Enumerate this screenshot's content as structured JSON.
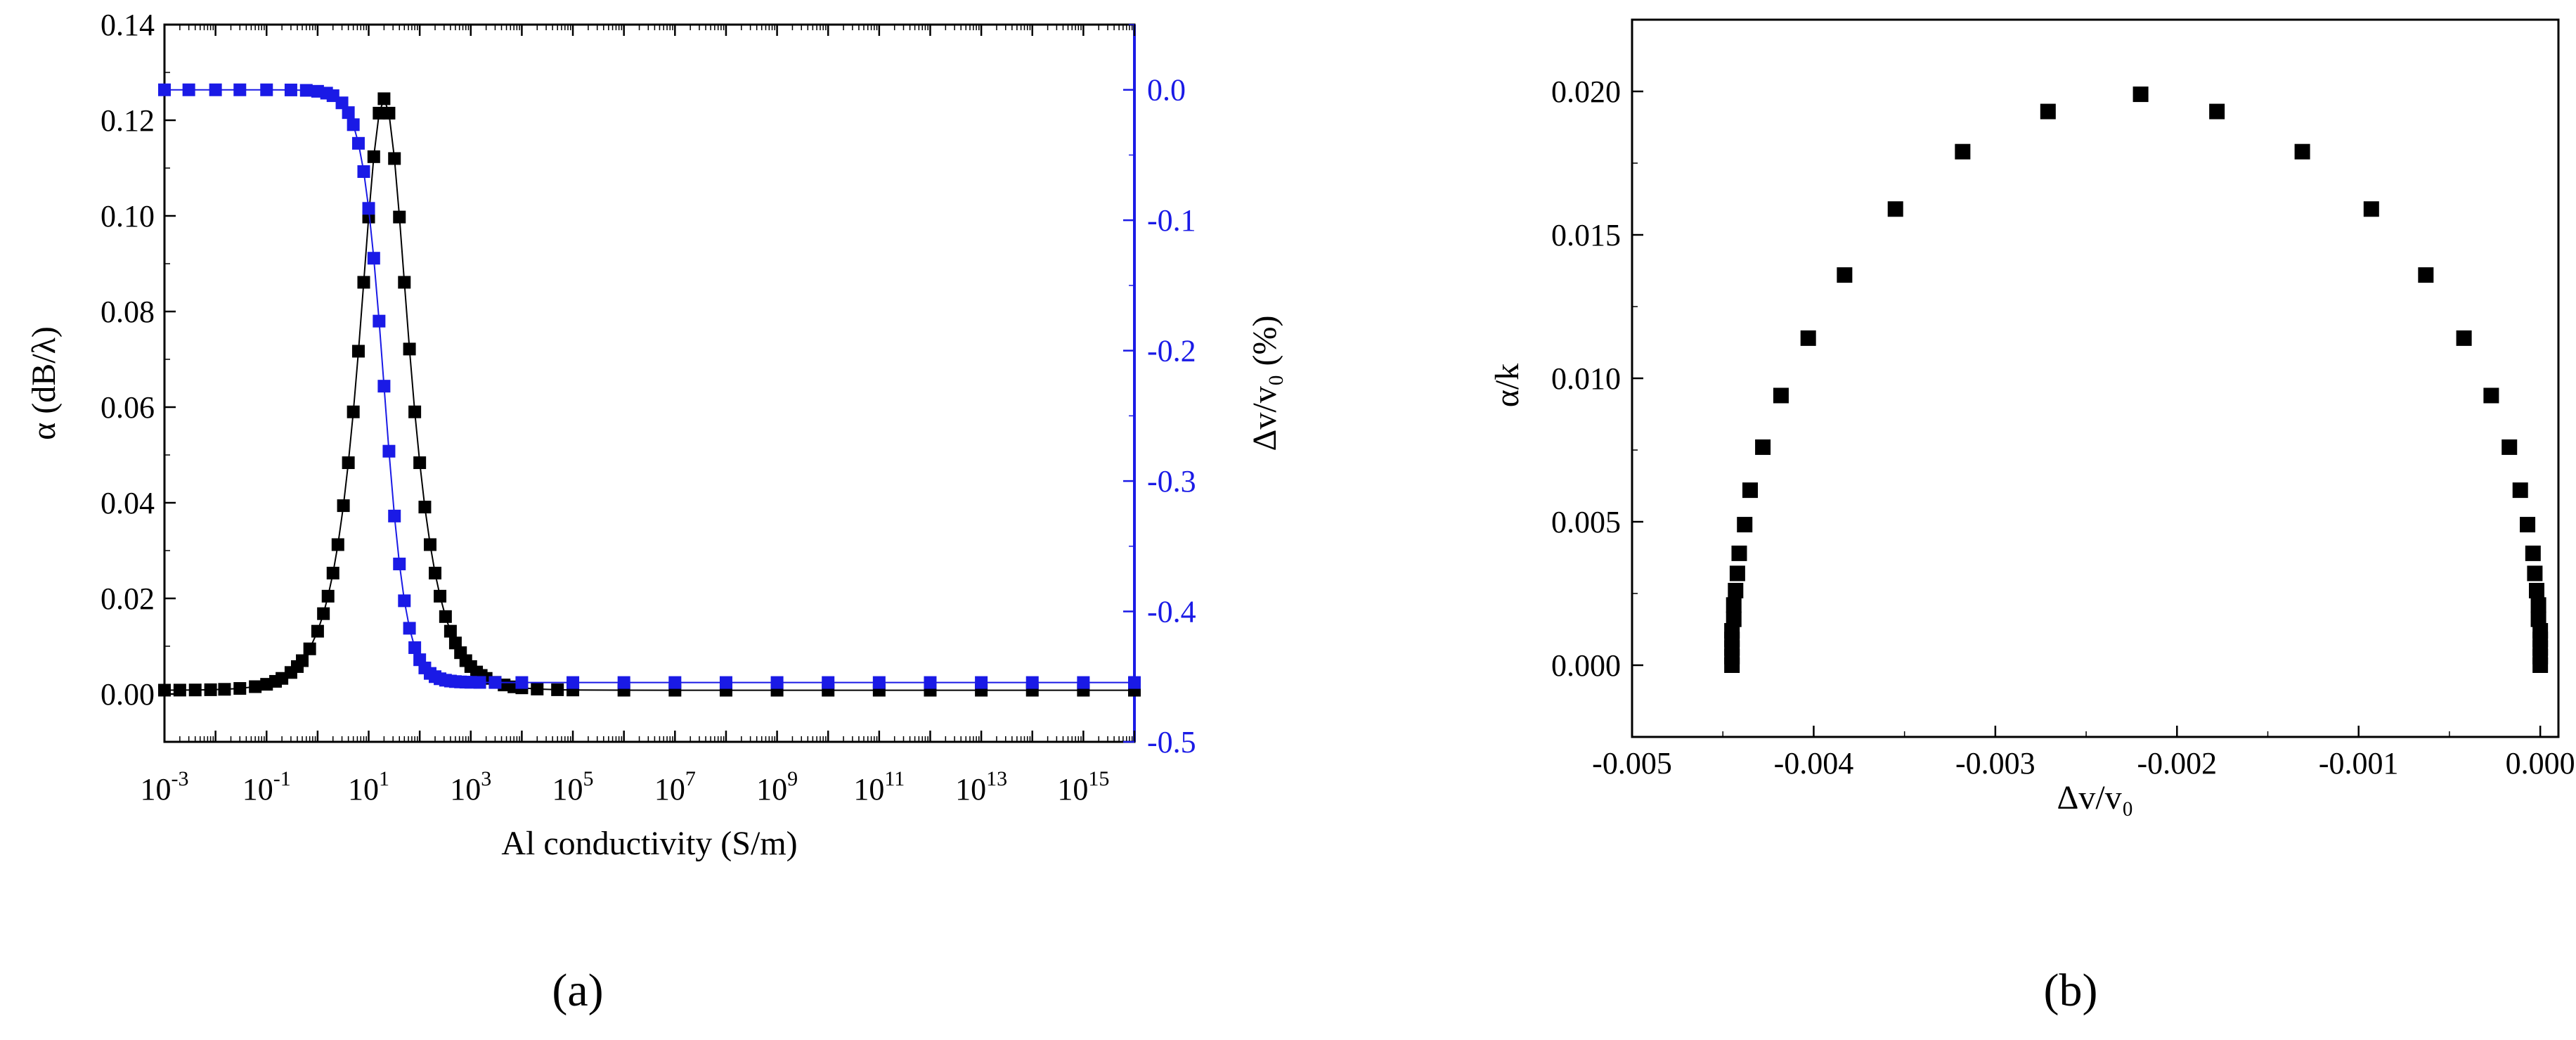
{
  "panel_labels": {
    "a": "(a)",
    "b": "(b)"
  },
  "chart_data": [
    {
      "id": "a",
      "type": "scatter",
      "x_scale": "log",
      "xlabel": "Al conductivity (S/m)",
      "ylabel_left": "α (dB/λ)",
      "ylabel_right": "Δv/v₀ (%)",
      "xlim": [
        0.001,
        1e+16
      ],
      "ylim_left": [
        -0.01,
        0.14
      ],
      "ylim_right": [
        -0.5,
        0.05
      ],
      "x_ticks": [
        {
          "value": 0.001,
          "base": "10",
          "exp": "-3"
        },
        {
          "value": 0.1,
          "base": "10",
          "exp": "-1"
        },
        {
          "value": 10,
          "base": "10",
          "exp": "1"
        },
        {
          "value": 1000,
          "base": "10",
          "exp": "3"
        },
        {
          "value": 100000,
          "base": "10",
          "exp": "5"
        },
        {
          "value": 10000000,
          "base": "10",
          "exp": "7"
        },
        {
          "value": 1000000000,
          "base": "10",
          "exp": "9"
        },
        {
          "value": 100000000000,
          "base": "10",
          "exp": "11"
        },
        {
          "value": 10000000000000,
          "base": "10",
          "exp": "13"
        },
        {
          "value": 1000000000000000,
          "base": "10",
          "exp": "15"
        }
      ],
      "y_ticks_left": [
        0.0,
        0.02,
        0.04,
        0.06,
        0.08,
        0.1,
        0.12,
        0.14
      ],
      "y_tick_labels_left": [
        "0.00",
        "0.02",
        "0.04",
        "0.06",
        "0.08",
        "0.10",
        "0.12",
        "0.14"
      ],
      "y_ticks_right": [
        0.0,
        -0.1,
        -0.2,
        -0.3,
        -0.4,
        -0.5
      ],
      "y_tick_labels_right": [
        "0.0",
        "-0.1",
        "-0.2",
        "-0.3",
        "-0.4",
        "-0.5"
      ],
      "series": [
        {
          "axis": "left",
          "color": "#000000",
          "model": "debye_peak",
          "peak": 0.1245,
          "center": 20,
          "baseline": 0.0008,
          "x_points": [
            0.001,
            0.002,
            0.004,
            0.008,
            0.015,
            0.03,
            0.06,
            0.1,
            0.15,
            0.2,
            0.3,
            0.4,
            0.5,
            0.7,
            1,
            1.3,
            1.6,
            2,
            2.5,
            3.2,
            4,
            5,
            6.3,
            8,
            10,
            12.6,
            16,
            20,
            25,
            32,
            40,
            50,
            63,
            80,
            100,
            126,
            160,
            200,
            250,
            320,
            400,
            500,
            630,
            800,
            1000,
            1300,
            1600,
            2000,
            3000,
            4500,
            7000,
            10000,
            20000,
            50000,
            100000,
            1000000.0,
            10000000.0,
            100000000.0,
            1000000000.0,
            10000000000.0,
            100000000000.0,
            1000000000000.0,
            10000000000000.0,
            100000000000000.0,
            1000000000000000.0,
            1e+16
          ]
        },
        {
          "axis": "right",
          "color": "#1a1ae6",
          "model": "step",
          "start": 0.0,
          "end": -0.4545,
          "center": 20,
          "x_points": [
            0.001,
            0.003,
            0.01,
            0.03,
            0.1,
            0.3,
            0.6,
            1,
            1.5,
            2,
            3,
            4,
            5,
            6.3,
            8,
            10,
            12.6,
            16,
            20,
            25,
            32,
            40,
            50,
            63,
            80,
            100,
            126,
            160,
            200,
            250,
            320,
            400,
            500,
            630,
            800,
            1000,
            1500,
            3000,
            10000.0,
            100000.0,
            1000000.0,
            10000000.0,
            100000000.0,
            1000000000.0,
            10000000000.0,
            100000000000.0,
            1000000000000.0,
            10000000000000.0,
            100000000000000.0,
            1000000000000000.0,
            1e+16
          ]
        }
      ]
    },
    {
      "id": "b",
      "type": "scatter",
      "xlabel": "Δv/v₀",
      "ylabel": "α/k",
      "xlim": [
        -0.005,
        0.0001
      ],
      "ylim": [
        -0.0025,
        0.0225
      ],
      "x_ticks": [
        -0.005,
        -0.004,
        -0.003,
        -0.002,
        -0.001,
        0.0
      ],
      "x_tick_labels": [
        "-0.005",
        "-0.004",
        "-0.003",
        "-0.002",
        "-0.001",
        "0.000"
      ],
      "y_ticks": [
        0.0,
        0.005,
        0.01,
        0.015,
        0.02
      ],
      "y_tick_labels": [
        "0.000",
        "0.005",
        "0.010",
        "0.015",
        "0.020"
      ],
      "series": [
        {
          "color": "#000000",
          "points": [
            [
              -0.00445,
              0.0
            ],
            [
              -0.00445,
              0.0003
            ],
            [
              -0.00445,
              0.0006
            ],
            [
              -0.00445,
              0.0009
            ],
            [
              -0.00445,
              0.0012
            ],
            [
              -0.00444,
              0.0016
            ],
            [
              -0.00444,
              0.0021
            ],
            [
              -0.00443,
              0.0026
            ],
            [
              -0.00442,
              0.0032
            ],
            [
              -0.00441,
              0.0039
            ],
            [
              -0.00438,
              0.0049
            ],
            [
              -0.00435,
              0.0061
            ],
            [
              -0.00428,
              0.0076
            ],
            [
              -0.00418,
              0.0094
            ],
            [
              -0.00403,
              0.0114
            ],
            [
              -0.00383,
              0.0136
            ],
            [
              -0.00355,
              0.0159
            ],
            [
              -0.00318,
              0.0179
            ],
            [
              -0.00271,
              0.0193
            ],
            [
              -0.0022,
              0.0199
            ],
            [
              -0.00178,
              0.0193
            ],
            [
              -0.00131,
              0.0179
            ],
            [
              -0.00093,
              0.0159
            ],
            [
              -0.00063,
              0.0136
            ],
            [
              -0.00042,
              0.0114
            ],
            [
              -0.00027,
              0.0094
            ],
            [
              -0.00017,
              0.0076
            ],
            [
              -0.00011,
              0.0061
            ],
            [
              -7e-05,
              0.0049
            ],
            [
              -4e-05,
              0.0039
            ],
            [
              -3e-05,
              0.0032
            ],
            [
              -2e-05,
              0.0026
            ],
            [
              -1e-05,
              0.0021
            ],
            [
              -1e-05,
              0.0016
            ],
            [
              0.0,
              0.0012
            ],
            [
              0.0,
              0.0009
            ],
            [
              0.0,
              0.0006
            ],
            [
              0.0,
              0.0003
            ],
            [
              0.0,
              0.0
            ]
          ]
        }
      ]
    }
  ]
}
